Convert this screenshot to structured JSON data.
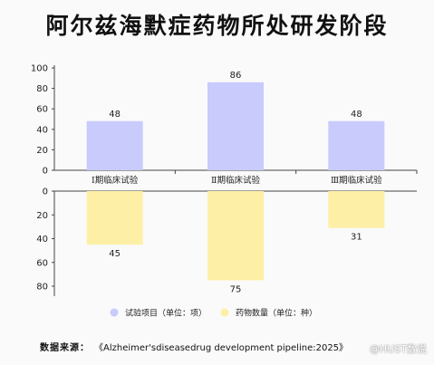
{
  "title": "阿尔兹海默症药物所处研发阶段",
  "source_label": "数据来源：",
  "source_text": "《Alzheimer'sdiseasedrug development pipeline:2025》",
  "watermark": "@HUST数说",
  "colors": {
    "trials": "#c8cbfb",
    "drugs": "#fdf0a6",
    "axis": "#444444"
  },
  "chart_data": {
    "type": "bar",
    "categories": [
      "Ⅰ期临床试验",
      "Ⅱ期临床试验",
      "Ⅲ期临床试验"
    ],
    "series": [
      {
        "name": "试验项目（单位：项）",
        "values": [
          48,
          86,
          48
        ],
        "direction": "up"
      },
      {
        "name": "药物数量（单位：种）",
        "values": [
          45,
          75,
          31
        ],
        "direction": "down"
      }
    ],
    "upper_axis": {
      "range": [
        0,
        100
      ],
      "ticks": [
        0,
        20,
        40,
        60,
        80,
        100
      ]
    },
    "lower_axis": {
      "range": [
        0,
        80
      ],
      "ticks": [
        0,
        20,
        40,
        60,
        80
      ],
      "inverted": true
    },
    "legend": "bottom-center",
    "grid": false
  }
}
